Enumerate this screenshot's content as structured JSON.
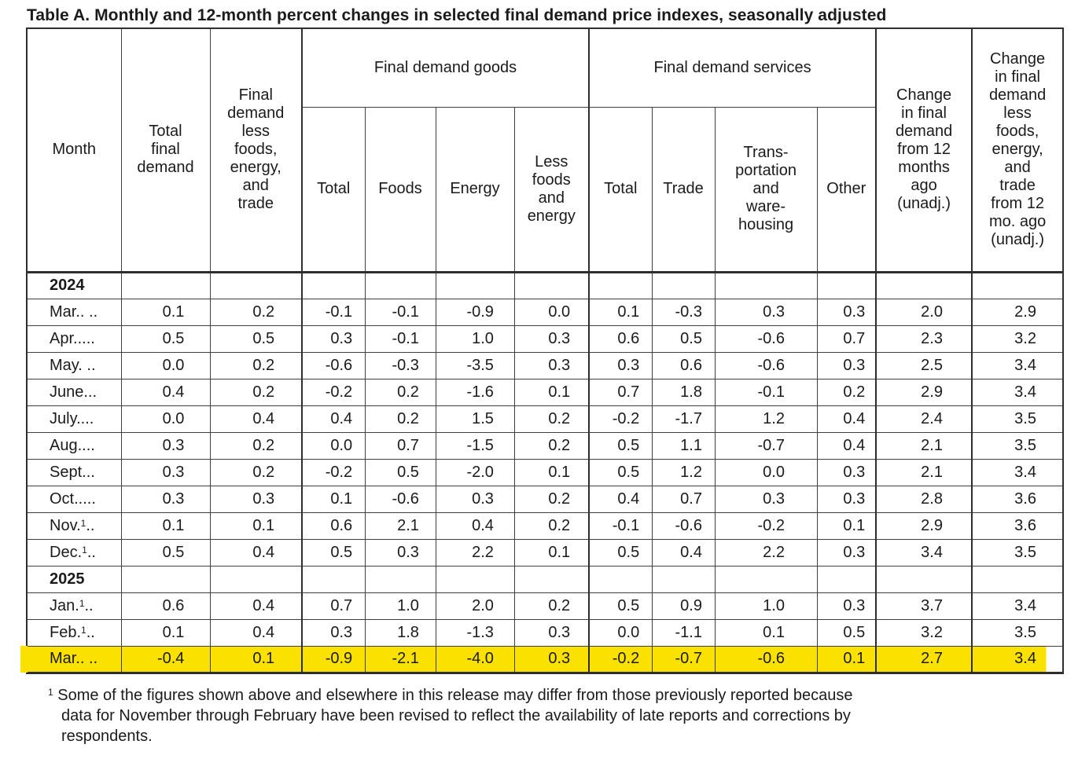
{
  "title": "Table A. Monthly and 12-month percent changes in selected final demand price indexes, seasonally adjusted",
  "highlight_color": "#fae100",
  "header": {
    "month": "Month",
    "total_final_demand": "Total\nfinal\ndemand",
    "fd_less_fet": "Final\ndemand\nless\nfoods,\nenergy,\nand\ntrade",
    "goods_group": "Final demand goods",
    "goods": {
      "total": "Total",
      "foods": "Foods",
      "energy": "Energy",
      "less_fe": "Less\nfoods\nand\nenergy"
    },
    "services_group": "Final demand services",
    "services": {
      "total": "Total",
      "trade": "Trade",
      "transportation": "Trans-\nportation\nand\nware-\nhousing",
      "other": "Other"
    },
    "change_12mo": "Change\nin final\ndemand\nfrom 12\nmonths\nago\n(unadj.)",
    "change_12mo_less": "Change\nin final\ndemand\nless\nfoods,\nenergy,\nand\ntrade\nfrom 12\nmo. ago\n(unadj.)"
  },
  "table": {
    "rows": [
      {
        "year": "2024"
      },
      {
        "m": "Mar.. ..",
        "sup": "",
        "post": "",
        "v": [
          "0.1",
          "0.2",
          "-0.1",
          "-0.1",
          "-0.9",
          "0.0",
          "0.1",
          "-0.3",
          "0.3",
          "0.3",
          "2.0",
          "2.9"
        ]
      },
      {
        "m": "Apr.....",
        "sup": "",
        "post": "",
        "v": [
          "0.5",
          "0.5",
          "0.3",
          "-0.1",
          "1.0",
          "0.3",
          "0.6",
          "0.5",
          "-0.6",
          "0.7",
          "2.3",
          "3.2"
        ]
      },
      {
        "m": "May. ..",
        "sup": "",
        "post": "",
        "v": [
          "0.0",
          "0.2",
          "-0.6",
          "-0.3",
          "-3.5",
          "0.3",
          "0.3",
          "0.6",
          "-0.6",
          "0.3",
          "2.5",
          "3.4"
        ]
      },
      {
        "m": "June...",
        "sup": "",
        "post": "",
        "v": [
          "0.4",
          "0.2",
          "-0.2",
          "0.2",
          "-1.6",
          "0.1",
          "0.7",
          "1.8",
          "-0.1",
          "0.2",
          "2.9",
          "3.4"
        ]
      },
      {
        "m": "July....",
        "sup": "",
        "post": "",
        "v": [
          "0.0",
          "0.4",
          "0.4",
          "0.2",
          "1.5",
          "0.2",
          "-0.2",
          "-1.7",
          "1.2",
          "0.4",
          "2.4",
          "3.5"
        ]
      },
      {
        "m": "Aug....",
        "sup": "",
        "post": "",
        "v": [
          "0.3",
          "0.2",
          "0.0",
          "0.7",
          "-1.5",
          "0.2",
          "0.5",
          "1.1",
          "-0.7",
          "0.4",
          "2.1",
          "3.5"
        ]
      },
      {
        "m": "Sept...",
        "sup": "",
        "post": "",
        "v": [
          "0.3",
          "0.2",
          "-0.2",
          "0.5",
          "-2.0",
          "0.1",
          "0.5",
          "1.2",
          "0.0",
          "0.3",
          "2.1",
          "3.4"
        ]
      },
      {
        "m": "Oct.....",
        "sup": "",
        "post": "",
        "v": [
          "0.3",
          "0.3",
          "0.1",
          "-0.6",
          "0.3",
          "0.2",
          "0.4",
          "0.7",
          "0.3",
          "0.3",
          "2.8",
          "3.6"
        ]
      },
      {
        "m": "Nov.",
        "sup": "1",
        "post": "..",
        "v": [
          "0.1",
          "0.1",
          "0.6",
          "2.1",
          "0.4",
          "0.2",
          "-0.1",
          "-0.6",
          "-0.2",
          "0.1",
          "2.9",
          "3.6"
        ]
      },
      {
        "m": "Dec.",
        "sup": "1",
        "post": "..",
        "v": [
          "0.5",
          "0.4",
          "0.5",
          "0.3",
          "2.2",
          "0.1",
          "0.5",
          "0.4",
          "2.2",
          "0.3",
          "3.4",
          "3.5"
        ]
      },
      {
        "year": "2025"
      },
      {
        "m": "Jan.",
        "sup": "1",
        "post": "..",
        "v": [
          "0.6",
          "0.4",
          "0.7",
          "1.0",
          "2.0",
          "0.2",
          "0.5",
          "0.9",
          "1.0",
          "0.3",
          "3.7",
          "3.4"
        ]
      },
      {
        "m": "Feb.",
        "sup": "1",
        "post": "..",
        "v": [
          "0.1",
          "0.4",
          "0.3",
          "1.8",
          "-1.3",
          "0.3",
          "0.0",
          "-1.1",
          "0.1",
          "0.5",
          "3.2",
          "3.5"
        ]
      },
      {
        "m": "Mar.. ..",
        "sup": "",
        "post": "",
        "highlight": true,
        "v": [
          "-0.4",
          "0.1",
          "-0.9",
          "-2.1",
          "-4.0",
          "0.3",
          "-0.2",
          "-0.7",
          "-0.6",
          "0.1",
          "2.7",
          "3.4"
        ]
      }
    ]
  },
  "footnote": {
    "sup": "1",
    "lines": [
      "Some of the figures shown above and elsewhere in this release may differ from those previously reported because",
      "data for November through February have been revised to reflect the availability of late reports and corrections by",
      "respondents."
    ]
  }
}
